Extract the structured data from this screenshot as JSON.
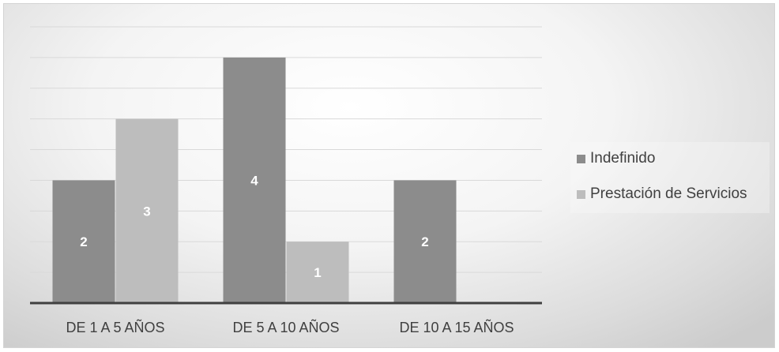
{
  "chart_data": {
    "type": "bar",
    "categories": [
      "DE 1 A 5 AÑOS",
      "DE 5 A 10 AÑOS",
      "DE 10 A 15 AÑOS"
    ],
    "series": [
      {
        "name": "Indefinido",
        "values": [
          2,
          4,
          2
        ],
        "color": "#8c8c8c"
      },
      {
        "name": "Prestación de Servicios",
        "values": [
          3,
          1,
          null
        ],
        "color": "#bdbdbd"
      }
    ],
    "ylim": [
      0,
      4.5
    ],
    "grid": true,
    "data_labels": true,
    "legend_position": "right",
    "title": "",
    "xlabel": "",
    "ylabel": ""
  }
}
